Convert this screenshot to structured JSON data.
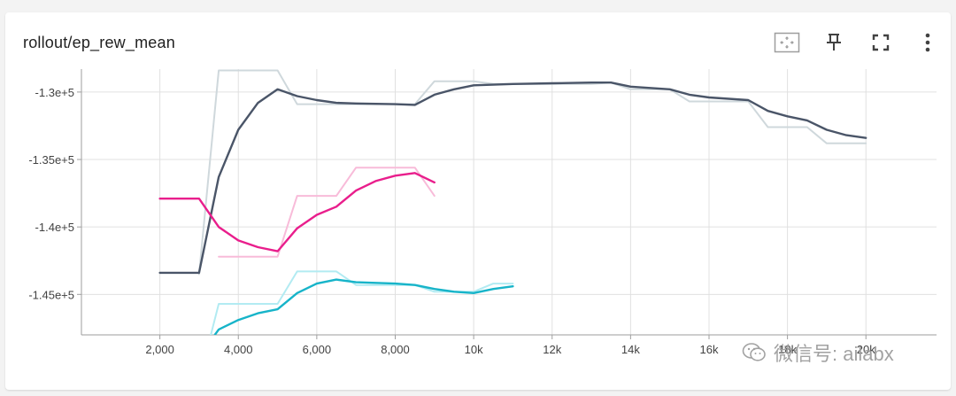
{
  "card": {
    "title": "rollout/ep_rew_mean"
  },
  "toolbar": {
    "fit_icon": "fit-domain-icon",
    "pin_icon": "pin-icon",
    "fullscreen_icon": "fullscreen-icon",
    "more_icon": "more-vert-icon"
  },
  "watermark": {
    "text": "微信号: ailabx"
  },
  "chart_data": {
    "type": "line",
    "title": "rollout/ep_rew_mean",
    "xlabel": "",
    "ylabel": "",
    "xlim": [
      0,
      21800
    ],
    "ylim": [
      -148000,
      -128300
    ],
    "x_ticks": [
      {
        "value": 2000,
        "label": "2,000"
      },
      {
        "value": 4000,
        "label": "4,000"
      },
      {
        "value": 6000,
        "label": "6,000"
      },
      {
        "value": 8000,
        "label": "8,000"
      },
      {
        "value": 10000,
        "label": "10k"
      },
      {
        "value": 12000,
        "label": "12k"
      },
      {
        "value": 14000,
        "label": "14k"
      },
      {
        "value": 16000,
        "label": "16k"
      },
      {
        "value": 18000,
        "label": "18k"
      },
      {
        "value": 20000,
        "label": "20k"
      }
    ],
    "y_ticks": [
      {
        "value": -130000,
        "label": "-1.3e+5"
      },
      {
        "value": -135000,
        "label": "-1.35e+5"
      },
      {
        "value": -140000,
        "label": "-1.4e+5"
      },
      {
        "value": -145000,
        "label": "-1.45e+5"
      }
    ],
    "grid": true,
    "series": [
      {
        "color": "#cfd8dc",
        "smoothed": false,
        "points": [
          [
            3000,
            -143500
          ],
          [
            3500,
            -128400
          ],
          [
            4000,
            -128400
          ],
          [
            4500,
            -128400
          ],
          [
            5000,
            -128400
          ],
          [
            5500,
            -130900
          ],
          [
            6000,
            -130900
          ],
          [
            6500,
            -130900
          ],
          [
            7000,
            -130900
          ],
          [
            8000,
            -130900
          ],
          [
            8500,
            -130900
          ],
          [
            9000,
            -129200
          ],
          [
            10000,
            -129200
          ],
          [
            10500,
            -129400
          ],
          [
            11000,
            -129400
          ],
          [
            12000,
            -129400
          ],
          [
            13000,
            -129400
          ],
          [
            13500,
            -129300
          ],
          [
            14000,
            -129800
          ],
          [
            15000,
            -129800
          ],
          [
            15500,
            -130700
          ],
          [
            16000,
            -130700
          ],
          [
            17000,
            -130700
          ],
          [
            17500,
            -132600
          ],
          [
            18500,
            -132600
          ],
          [
            19000,
            -133800
          ],
          [
            20000,
            -133800
          ]
        ]
      },
      {
        "color": "#4a5568",
        "smoothed": true,
        "points": [
          [
            2000,
            -143400
          ],
          [
            3000,
            -143400
          ],
          [
            3500,
            -136300
          ],
          [
            4000,
            -132800
          ],
          [
            4500,
            -130800
          ],
          [
            5000,
            -129800
          ],
          [
            5500,
            -130300
          ],
          [
            6000,
            -130600
          ],
          [
            6500,
            -130800
          ],
          [
            7000,
            -130850
          ],
          [
            8000,
            -130900
          ],
          [
            8500,
            -130950
          ],
          [
            9000,
            -130200
          ],
          [
            9500,
            -129800
          ],
          [
            10000,
            -129500
          ],
          [
            11000,
            -129400
          ],
          [
            12000,
            -129350
          ],
          [
            13000,
            -129300
          ],
          [
            13500,
            -129300
          ],
          [
            14000,
            -129600
          ],
          [
            15000,
            -129800
          ],
          [
            15500,
            -130200
          ],
          [
            16000,
            -130400
          ],
          [
            17000,
            -130600
          ],
          [
            17500,
            -131400
          ],
          [
            18000,
            -131800
          ],
          [
            18500,
            -132100
          ],
          [
            19000,
            -132800
          ],
          [
            19500,
            -133200
          ],
          [
            20000,
            -133400
          ]
        ]
      },
      {
        "color": "#f8bbd9",
        "smoothed": false,
        "points": [
          [
            3500,
            -142200
          ],
          [
            4000,
            -142200
          ],
          [
            5000,
            -142200
          ],
          [
            5500,
            -137700
          ],
          [
            6500,
            -137700
          ],
          [
            7000,
            -135600
          ],
          [
            8000,
            -135600
          ],
          [
            8500,
            -135600
          ],
          [
            9000,
            -137700
          ]
        ]
      },
      {
        "color": "#e91e8c",
        "smoothed": true,
        "points": [
          [
            2000,
            -137900
          ],
          [
            3000,
            -137900
          ],
          [
            3500,
            -140000
          ],
          [
            4000,
            -141000
          ],
          [
            4500,
            -141500
          ],
          [
            5000,
            -141800
          ],
          [
            5500,
            -140100
          ],
          [
            6000,
            -139100
          ],
          [
            6500,
            -138500
          ],
          [
            7000,
            -137300
          ],
          [
            7500,
            -136600
          ],
          [
            8000,
            -136200
          ],
          [
            8500,
            -136000
          ],
          [
            9000,
            -136700
          ]
        ]
      },
      {
        "color": "#b2ebf2",
        "smoothed": false,
        "points": [
          [
            3300,
            -148000
          ],
          [
            3500,
            -145700
          ],
          [
            4000,
            -145700
          ],
          [
            5000,
            -145700
          ],
          [
            5500,
            -143300
          ],
          [
            6000,
            -143300
          ],
          [
            6500,
            -143300
          ],
          [
            7000,
            -144300
          ],
          [
            8000,
            -144300
          ],
          [
            8500,
            -144300
          ],
          [
            9000,
            -144800
          ],
          [
            10000,
            -144800
          ],
          [
            10500,
            -144200
          ],
          [
            11000,
            -144200
          ]
        ]
      },
      {
        "color": "#17b4c9",
        "smoothed": true,
        "points": [
          [
            3400,
            -148000
          ],
          [
            3500,
            -147600
          ],
          [
            4000,
            -146900
          ],
          [
            4500,
            -146400
          ],
          [
            5000,
            -146100
          ],
          [
            5500,
            -144900
          ],
          [
            6000,
            -144200
          ],
          [
            6500,
            -143900
          ],
          [
            7000,
            -144100
          ],
          [
            8000,
            -144200
          ],
          [
            8500,
            -144300
          ],
          [
            9000,
            -144600
          ],
          [
            9500,
            -144800
          ],
          [
            10000,
            -144900
          ],
          [
            10500,
            -144600
          ],
          [
            11000,
            -144400
          ]
        ]
      }
    ]
  }
}
